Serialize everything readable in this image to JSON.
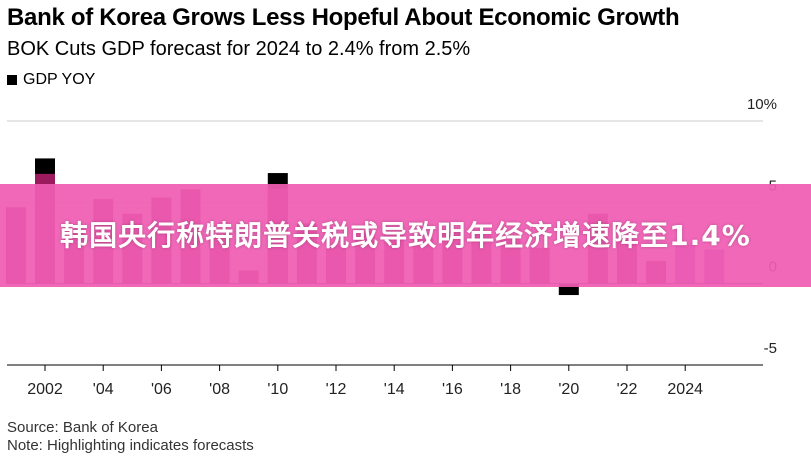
{
  "chart_data": {
    "type": "bar",
    "title": "Bank of Korea Grows Less Hopeful About Economic Growth",
    "subtitle": "BOK Cuts GDP forecast for 2024 to 2.4% from 2.5%",
    "legend": [
      {
        "name": "GDP YOY",
        "color": "#000000"
      }
    ],
    "ylim": [
      -5,
      10
    ],
    "yticks": [
      10,
      5,
      0,
      -5
    ],
    "ytick_labels": [
      "10%",
      "5",
      "0",
      "-5"
    ],
    "xtick_labels": [
      "2002",
      "'04",
      "'06",
      "'08",
      "'10",
      "'12",
      "'14",
      "'16",
      "'18",
      "'20",
      "'22",
      "2024"
    ],
    "xtick_years": [
      2002,
      2004,
      2006,
      2008,
      2010,
      2012,
      2014,
      2016,
      2018,
      2020,
      2022,
      2024
    ],
    "categories": [
      2001,
      2002,
      2003,
      2004,
      2005,
      2006,
      2007,
      2008,
      2009,
      2010,
      2011,
      2012,
      2013,
      2014,
      2015,
      2016,
      2017,
      2018,
      2019,
      2020,
      2021,
      2022,
      2023,
      2024,
      2025
    ],
    "values": [
      4.7,
      7.7,
      3.1,
      5.2,
      4.3,
      5.3,
      5.8,
      3.0,
      0.8,
      6.8,
      3.7,
      2.4,
      3.2,
      3.2,
      2.8,
      3.2,
      3.2,
      2.9,
      2.2,
      -0.7,
      4.3,
      2.7,
      1.4,
      2.4,
      2.1
    ],
    "series_colors": {
      "actual": "#9b1b5e",
      "forecast": "#a955c4",
      "prior": "#000000"
    },
    "forecast_from": 2024,
    "prior_forecast": {
      "2002": 7.7,
      "2010": 6.8
    },
    "banner_overlap_note": ""
  },
  "footer": {
    "source": "Source: Bank of Korea",
    "note": "Note: Highlighting indicates forecasts"
  },
  "banner": {
    "text": "韩国央行称特朗普关税或导致明年经济增速降至1.4%"
  }
}
